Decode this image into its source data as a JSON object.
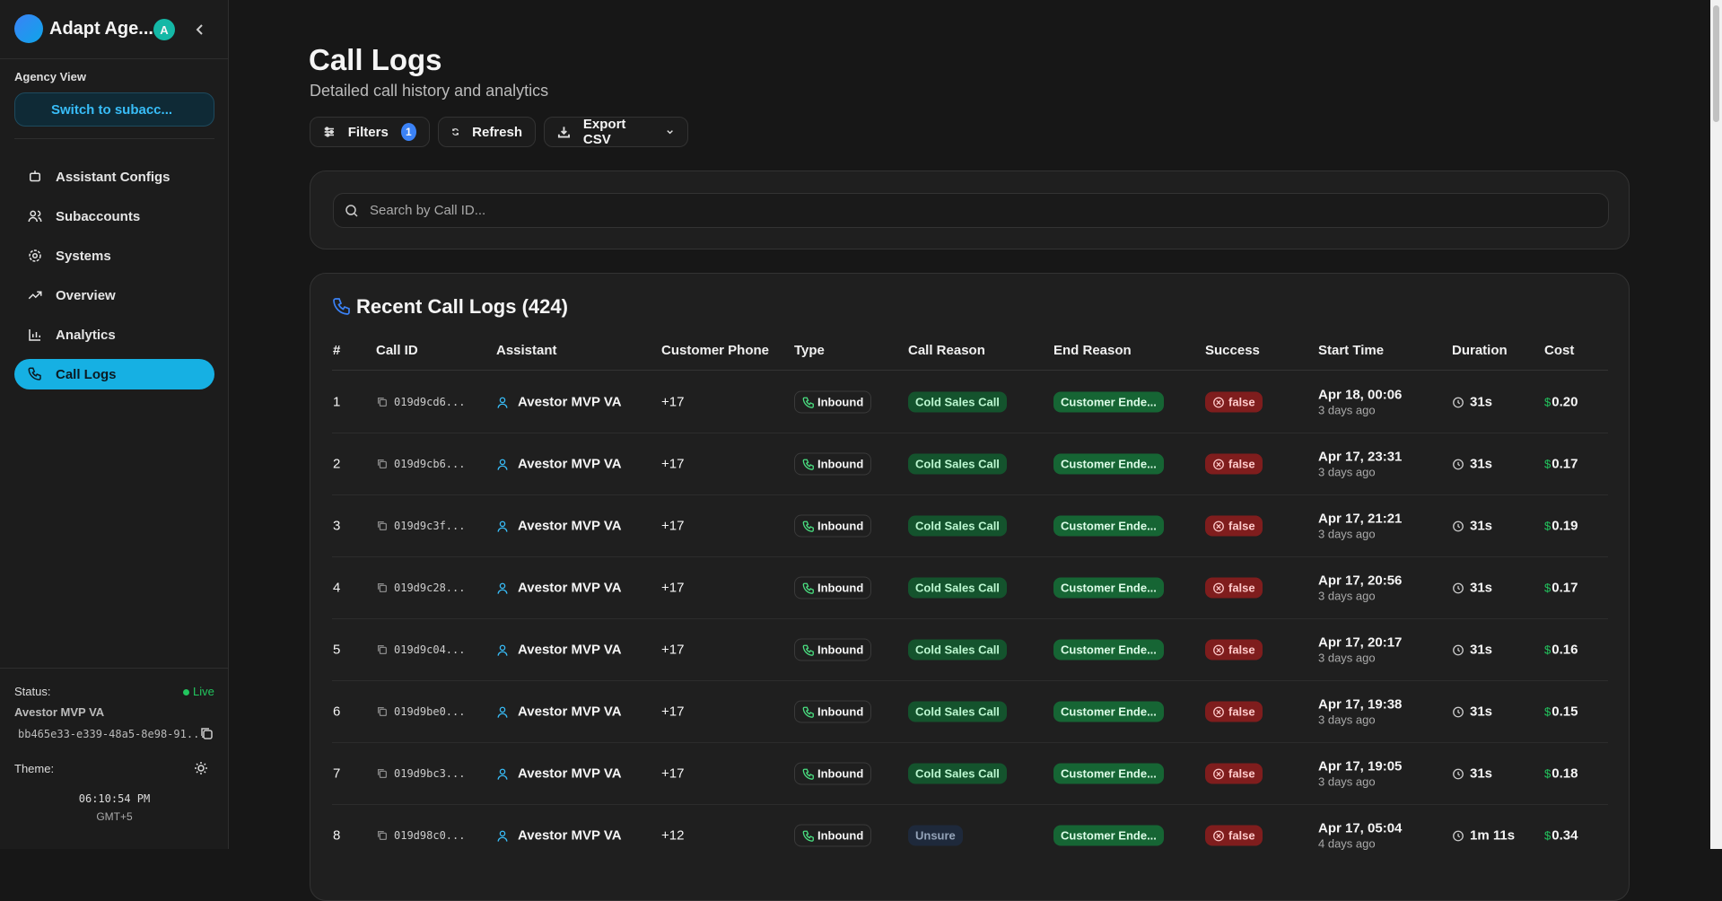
{
  "sidebar": {
    "brand": "Adapt Age...",
    "avatar": "A",
    "section_label": "Agency View",
    "switch_button": "Switch to subacc...",
    "nav": [
      {
        "label": "Assistant Configs",
        "active": false
      },
      {
        "label": "Subaccounts",
        "active": false
      },
      {
        "label": "Systems",
        "active": false
      },
      {
        "label": "Overview",
        "active": false
      },
      {
        "label": "Analytics",
        "active": false
      },
      {
        "label": "Call Logs",
        "active": true
      }
    ],
    "status_label": "Status:",
    "status_value": "Live",
    "assistant": "Avestor MVP VA",
    "assistant_id": "bb465e33-e339-48a5-8e98-91...",
    "theme_label": "Theme:",
    "time": "06:10:54 PM",
    "timezone": "GMT+5"
  },
  "header": {
    "title": "Call Logs",
    "subtitle": "Detailed call history and analytics"
  },
  "toolbar": {
    "filters": "Filters",
    "filter_count": 1,
    "refresh": "Refresh",
    "export": "Export CSV"
  },
  "search": {
    "placeholder": "Search by Call ID..."
  },
  "table": {
    "title": "Recent Call Logs (424)",
    "currency_symbol": "$",
    "columns": [
      "#",
      "Call ID",
      "Assistant",
      "Customer Phone",
      "Type",
      "Call Reason",
      "End Reason",
      "Success",
      "Start Time",
      "Duration",
      "Cost"
    ],
    "rows": [
      [
        1,
        "019d9cd6...",
        "Avestor MVP VA",
        "+17",
        "Inbound",
        "Cold Sales Call",
        "Customer Ende...",
        "false",
        "Apr 18, 00:06",
        "3 days ago",
        "31s",
        "0.20"
      ],
      [
        2,
        "019d9cb6...",
        "Avestor MVP VA",
        "+17",
        "Inbound",
        "Cold Sales Call",
        "Customer Ende...",
        "false",
        "Apr 17, 23:31",
        "3 days ago",
        "31s",
        "0.17"
      ],
      [
        3,
        "019d9c3f...",
        "Avestor MVP VA",
        "+17",
        "Inbound",
        "Cold Sales Call",
        "Customer Ende...",
        "false",
        "Apr 17, 21:21",
        "3 days ago",
        "31s",
        "0.19"
      ],
      [
        4,
        "019d9c28...",
        "Avestor MVP VA",
        "+17",
        "Inbound",
        "Cold Sales Call",
        "Customer Ende...",
        "false",
        "Apr 17, 20:56",
        "3 days ago",
        "31s",
        "0.17"
      ],
      [
        5,
        "019d9c04...",
        "Avestor MVP VA",
        "+17",
        "Inbound",
        "Cold Sales Call",
        "Customer Ende...",
        "false",
        "Apr 17, 20:17",
        "3 days ago",
        "31s",
        "0.16"
      ],
      [
        6,
        "019d9be0...",
        "Avestor MVP VA",
        "+17",
        "Inbound",
        "Cold Sales Call",
        "Customer Ende...",
        "false",
        "Apr 17, 19:38",
        "3 days ago",
        "31s",
        "0.15"
      ],
      [
        7,
        "019d9bc3...",
        "Avestor MVP VA",
        "+17",
        "Inbound",
        "Cold Sales Call",
        "Customer Ende...",
        "false",
        "Apr 17, 19:05",
        "3 days ago",
        "31s",
        "0.18"
      ],
      [
        8,
        "019d98c0...",
        "Avestor MVP VA",
        "+12",
        "Inbound",
        "Unsure",
        "Customer Ende...",
        "false",
        "Apr 17, 05:04",
        "4 days ago",
        "1m 11s",
        "0.34"
      ]
    ]
  }
}
